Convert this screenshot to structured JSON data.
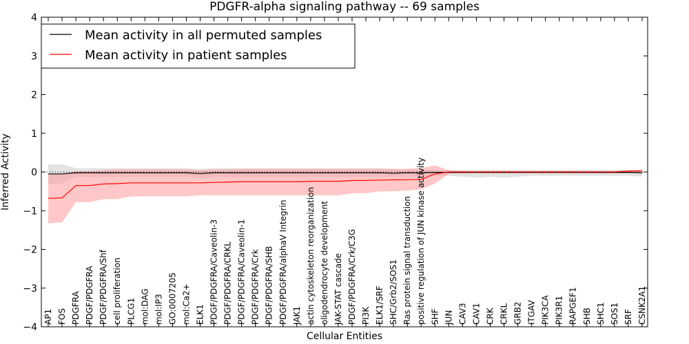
{
  "chart_data": {
    "type": "line",
    "title": "PDGFR-alpha signaling pathway -- 69 samples",
    "xlabel": "Cellular Entities",
    "ylabel": "Inferred Activity",
    "ylim": [
      -4,
      4
    ],
    "yticks": [
      -4,
      -3,
      -2,
      -1,
      0,
      1,
      2,
      3,
      4
    ],
    "ytick_labels": [
      "−4",
      "−3",
      "−2",
      "−1",
      "0",
      "1",
      "2",
      "3",
      "4"
    ],
    "grid": false,
    "legend_position": "top-left",
    "categories": [
      "AP1",
      "FOS",
      "PDGFRA",
      "PDGF/PDGFRA",
      "PDGF/PDGFRA/Shf",
      "cell proliferation",
      "PLCG1",
      "mol:DAG",
      "mol:IP3",
      "GO:0007205",
      "mol:Ca2+",
      "ELK1",
      "PDGF/PDGFRA/Caveolin-3",
      "PDGF/PDGFRA/CRKL",
      "PDGF/PDGFRA/Caveolin-1",
      "PDGF/PDGFRA/Crk",
      "PDGF/PDGFRA/SHB",
      "PDGF/PDGFRA/alphaV Integrin",
      "JAK1",
      "actin cytoskeleton reorganization",
      "oligodendrocyte development",
      "JAK-STAT cascade",
      "PDGF/PDGFRA/Crk/C3G",
      "PI3K",
      "ELK1/SRF",
      "SHC/Grb2/SOS1",
      "Ras protein signal transduction",
      "positive regulation of JUN kinase activity",
      "SHF",
      "JUN",
      "CAV3",
      "CAV1",
      "CRK",
      "CRKL",
      "GRB2",
      "ITGAV",
      "PIK3CA",
      "PIK3R1",
      "RAPGEF1",
      "SHB",
      "SHC1",
      "SOS1",
      "SRF",
      "CSNK2A1"
    ],
    "series": [
      {
        "name": "Mean activity in all permuted samples",
        "color": "#000000",
        "band_color": "#c0c0c0",
        "values": [
          -0.05,
          -0.05,
          -0.02,
          -0.02,
          -0.02,
          -0.02,
          -0.02,
          -0.02,
          -0.02,
          -0.02,
          -0.02,
          -0.04,
          -0.02,
          -0.02,
          -0.02,
          -0.02,
          -0.02,
          -0.02,
          -0.02,
          -0.02,
          -0.02,
          -0.02,
          -0.02,
          -0.02,
          -0.02,
          -0.03,
          -0.02,
          -0.02,
          -0.01,
          -0.01,
          -0.01,
          -0.01,
          -0.01,
          -0.01,
          -0.01,
          -0.01,
          -0.01,
          -0.01,
          -0.01,
          -0.01,
          -0.01,
          -0.01,
          -0.01,
          -0.02
        ],
        "lower": [
          -0.3,
          -0.3,
          -0.12,
          -0.13,
          -0.13,
          -0.13,
          -0.13,
          -0.13,
          -0.13,
          -0.13,
          -0.13,
          -0.15,
          -0.13,
          -0.13,
          -0.13,
          -0.13,
          -0.13,
          -0.13,
          -0.13,
          -0.13,
          -0.13,
          -0.13,
          -0.13,
          -0.13,
          -0.13,
          -0.13,
          -0.12,
          -0.12,
          -0.1,
          -0.1,
          -0.12,
          -0.15,
          -0.12,
          -0.15,
          -0.12,
          -0.1,
          -0.1,
          -0.1,
          -0.1,
          -0.1,
          -0.1,
          -0.1,
          -0.1,
          -0.12
        ],
        "upper": [
          0.2,
          0.2,
          0.1,
          0.1,
          0.1,
          0.1,
          0.1,
          0.1,
          0.1,
          0.1,
          0.1,
          0.08,
          0.1,
          0.1,
          0.1,
          0.1,
          0.1,
          0.1,
          0.1,
          0.1,
          0.1,
          0.1,
          0.1,
          0.1,
          0.1,
          0.08,
          0.08,
          0.07,
          0.05,
          0.05,
          0.05,
          0.05,
          0.05,
          0.05,
          0.05,
          0.05,
          0.05,
          0.05,
          0.05,
          0.05,
          0.05,
          0.05,
          0.05,
          0.05
        ]
      },
      {
        "name": "Mean activity in patient samples",
        "color": "#ff0000",
        "band_color": "#ff9999",
        "values": [
          -0.68,
          -0.67,
          -0.35,
          -0.35,
          -0.31,
          -0.3,
          -0.28,
          -0.28,
          -0.28,
          -0.28,
          -0.28,
          -0.28,
          -0.27,
          -0.26,
          -0.25,
          -0.25,
          -0.25,
          -0.25,
          -0.25,
          -0.24,
          -0.24,
          -0.24,
          -0.22,
          -0.22,
          -0.21,
          -0.2,
          -0.2,
          -0.19,
          -0.05,
          0.0,
          0.0,
          0.0,
          0.0,
          0.0,
          0.0,
          0.0,
          0.0,
          0.0,
          0.0,
          0.0,
          0.0,
          0.0,
          0.02,
          0.03
        ],
        "lower": [
          -1.33,
          -1.3,
          -0.78,
          -0.78,
          -0.7,
          -0.7,
          -0.63,
          -0.63,
          -0.63,
          -0.63,
          -0.63,
          -0.6,
          -0.6,
          -0.6,
          -0.6,
          -0.6,
          -0.6,
          -0.6,
          -0.6,
          -0.6,
          -0.6,
          -0.6,
          -0.55,
          -0.55,
          -0.5,
          -0.5,
          -0.48,
          -0.45,
          -0.3,
          -0.05,
          -0.03,
          -0.03,
          -0.03,
          -0.03,
          -0.03,
          -0.03,
          -0.03,
          -0.03,
          -0.03,
          -0.03,
          -0.03,
          -0.03,
          -0.02,
          -0.02
        ],
        "upper": [
          -0.05,
          -0.05,
          0.02,
          0.02,
          0.05,
          0.07,
          0.07,
          0.07,
          0.07,
          0.07,
          0.07,
          0.05,
          0.07,
          0.07,
          0.08,
          0.08,
          0.08,
          0.08,
          0.08,
          0.08,
          0.08,
          0.08,
          0.08,
          0.08,
          0.08,
          0.08,
          0.08,
          0.1,
          0.17,
          0.05,
          0.03,
          0.03,
          0.03,
          0.03,
          0.03,
          0.03,
          0.03,
          0.03,
          0.03,
          0.03,
          0.03,
          0.03,
          0.05,
          0.06
        ]
      }
    ]
  }
}
